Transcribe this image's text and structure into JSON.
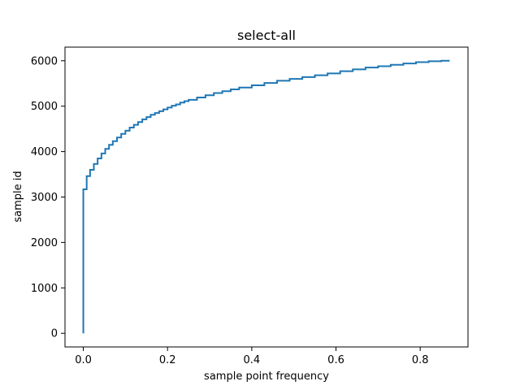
{
  "chart_data": {
    "type": "line",
    "title": "select-all",
    "xlabel": "sample point frequency",
    "ylabel": "sample id",
    "xlim": [
      -0.0435,
      0.9135
    ],
    "ylim": [
      -300,
      6300
    ],
    "xticks": [
      0.0,
      0.2,
      0.4,
      0.6,
      0.8
    ],
    "xtick_labels": [
      "0.0",
      "0.2",
      "0.4",
      "0.6",
      "0.8"
    ],
    "yticks": [
      0,
      1000,
      2000,
      3000,
      4000,
      5000,
      6000
    ],
    "ytick_labels": [
      "0",
      "1000",
      "2000",
      "3000",
      "4000",
      "5000",
      "6000"
    ],
    "grid": false,
    "series": [
      {
        "name": "select-all",
        "color": "#1f77b4",
        "step": true,
        "x": [
          0.0,
          0.0,
          0.008,
          0.016,
          0.025,
          0.034,
          0.043,
          0.052,
          0.061,
          0.07,
          0.08,
          0.09,
          0.1,
          0.11,
          0.12,
          0.13,
          0.14,
          0.15,
          0.16,
          0.17,
          0.18,
          0.19,
          0.2,
          0.21,
          0.22,
          0.23,
          0.24,
          0.25,
          0.27,
          0.29,
          0.31,
          0.33,
          0.35,
          0.37,
          0.4,
          0.43,
          0.46,
          0.49,
          0.52,
          0.55,
          0.58,
          0.61,
          0.64,
          0.67,
          0.7,
          0.73,
          0.76,
          0.79,
          0.82,
          0.85,
          0.87
        ],
        "y": [
          0,
          3170,
          3460,
          3600,
          3730,
          3850,
          3960,
          4060,
          4150,
          4230,
          4310,
          4390,
          4460,
          4530,
          4590,
          4650,
          4710,
          4760,
          4810,
          4850,
          4890,
          4930,
          4970,
          5010,
          5040,
          5080,
          5110,
          5140,
          5190,
          5240,
          5290,
          5330,
          5370,
          5410,
          5460,
          5510,
          5560,
          5600,
          5640,
          5680,
          5720,
          5770,
          5810,
          5850,
          5880,
          5910,
          5940,
          5970,
          5990,
          6000,
          6000
        ]
      }
    ]
  }
}
